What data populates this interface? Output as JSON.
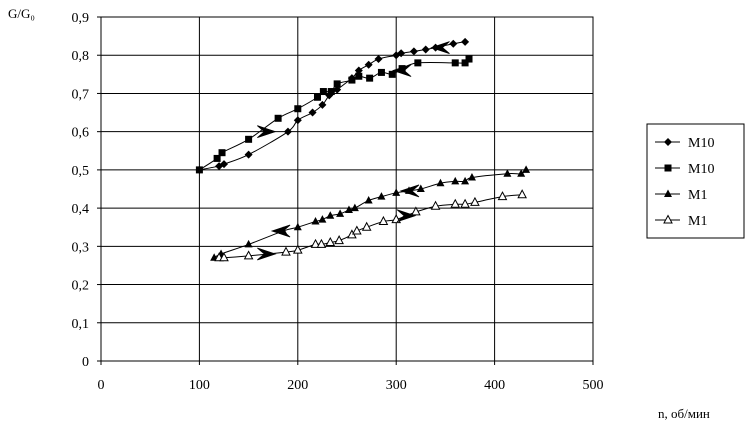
{
  "chart_data": {
    "type": "scatter",
    "ylabel": "G/G₀",
    "xlabel": "n, об/мин",
    "xlim": [
      0,
      500
    ],
    "ylim": [
      0,
      0.9
    ],
    "x_ticks": [
      0,
      100,
      200,
      300,
      400,
      500
    ],
    "x_tick_labels": [
      "0",
      "100",
      "200",
      "300",
      "400",
      "500"
    ],
    "y_ticks": [
      0,
      0.1,
      0.2,
      0.3,
      0.4,
      0.5,
      0.6,
      0.7,
      0.8,
      0.9
    ],
    "y_tick_labels": [
      "0",
      "0,1",
      "0,2",
      "0,3",
      "0,4",
      "0,5",
      "0,6",
      "0,7",
      "0,8",
      "0,9"
    ],
    "grid": true,
    "legend_position": "right",
    "series": [
      {
        "name": "M10",
        "marker": "diamond-filled",
        "x": [
          100,
          120,
          125,
          150,
          190,
          200,
          215,
          225,
          232,
          240,
          255,
          262,
          272,
          282,
          300,
          305,
          318,
          330,
          340,
          358,
          370
        ],
        "y": [
          0.5,
          0.51,
          0.515,
          0.54,
          0.6,
          0.63,
          0.65,
          0.67,
          0.695,
          0.71,
          0.74,
          0.76,
          0.775,
          0.79,
          0.8,
          0.805,
          0.81,
          0.815,
          0.82,
          0.83,
          0.835
        ]
      },
      {
        "name": "M10",
        "marker": "square-filled",
        "x": [
          100,
          118,
          123,
          150,
          180,
          200,
          220,
          226,
          234,
          240,
          255,
          262,
          273,
          285,
          296,
          306,
          322,
          360,
          370,
          374
        ],
        "y": [
          0.5,
          0.53,
          0.545,
          0.58,
          0.635,
          0.66,
          0.69,
          0.705,
          0.705,
          0.725,
          0.735,
          0.745,
          0.74,
          0.755,
          0.75,
          0.765,
          0.78,
          0.78,
          0.78,
          0.79
        ]
      },
      {
        "name": "M1",
        "marker": "triangle-filled",
        "x": [
          115,
          122,
          150,
          185,
          200,
          218,
          225,
          233,
          243,
          252,
          258,
          272,
          285,
          300,
          313,
          325,
          345,
          360,
          370,
          377,
          413,
          427,
          432
        ],
        "y": [
          0.27,
          0.28,
          0.305,
          0.34,
          0.35,
          0.365,
          0.37,
          0.38,
          0.385,
          0.395,
          0.4,
          0.42,
          0.43,
          0.44,
          0.445,
          0.45,
          0.465,
          0.47,
          0.47,
          0.48,
          0.49,
          0.49,
          0.5
        ]
      },
      {
        "name": "M1",
        "marker": "triangle-open",
        "x": [
          120,
          125,
          150,
          188,
          200,
          218,
          224,
          233,
          242,
          255,
          260,
          270,
          287,
          300,
          320,
          340,
          360,
          370,
          380,
          408,
          428
        ],
        "y": [
          0.27,
          0.27,
          0.275,
          0.285,
          0.29,
          0.305,
          0.305,
          0.31,
          0.315,
          0.33,
          0.34,
          0.35,
          0.365,
          0.37,
          0.39,
          0.405,
          0.41,
          0.41,
          0.415,
          0.43,
          0.435
        ]
      }
    ],
    "annotations": [
      {
        "type": "arrow",
        "direction": "left",
        "x": 345,
        "y": 0.82
      },
      {
        "type": "arrow",
        "direction": "right",
        "x": 168,
        "y": 0.6
      },
      {
        "type": "arrow",
        "direction": "left",
        "x": 306,
        "y": 0.76
      },
      {
        "type": "arrow",
        "direction": "left",
        "x": 314,
        "y": 0.445
      },
      {
        "type": "arrow",
        "direction": "left",
        "x": 183,
        "y": 0.34
      },
      {
        "type": "arrow",
        "direction": "right",
        "x": 310,
        "y": 0.38
      },
      {
        "type": "arrow",
        "direction": "right",
        "x": 168,
        "y": 0.28
      }
    ]
  }
}
